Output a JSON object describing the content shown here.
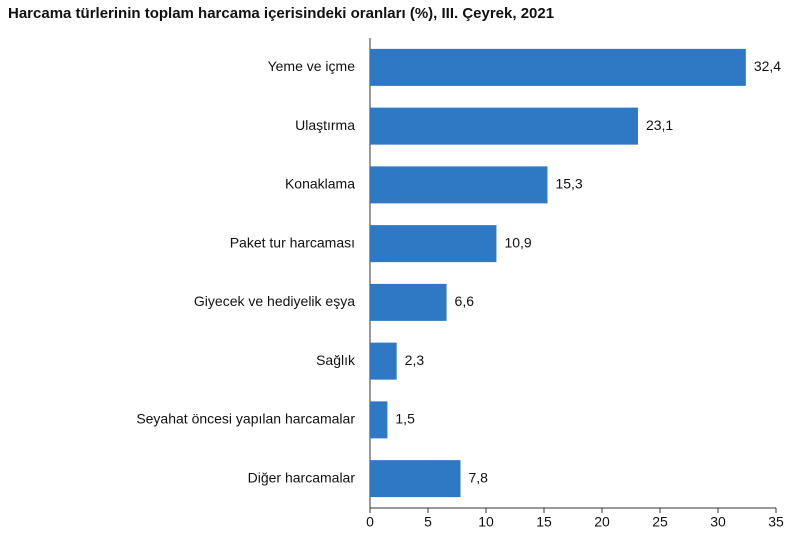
{
  "chart_data": {
    "type": "barh",
    "title": "Harcama türlerinin toplam harcama içerisindeki oranları (%), III. Çeyrek, 2021",
    "categories": [
      "Yeme ve içme",
      "Ulaştırma",
      "Konaklama",
      "Paket tur harcaması",
      "Giyecek ve hediyelik eşya",
      "Sağlık",
      "Seyahat öncesi yapılan harcamalar",
      "Diğer harcamalar"
    ],
    "values": [
      32.4,
      23.1,
      15.3,
      10.9,
      6.6,
      2.3,
      1.5,
      7.8
    ],
    "value_labels": [
      "32,4",
      "23,1",
      "15,3",
      "10,9",
      "6,6",
      "2,3",
      "1,5",
      "7,8"
    ],
    "color": "#2e78c4",
    "xlim": [
      0,
      35
    ],
    "xticks": [
      0,
      5,
      10,
      15,
      20,
      25,
      30,
      35
    ],
    "grid": false
  }
}
